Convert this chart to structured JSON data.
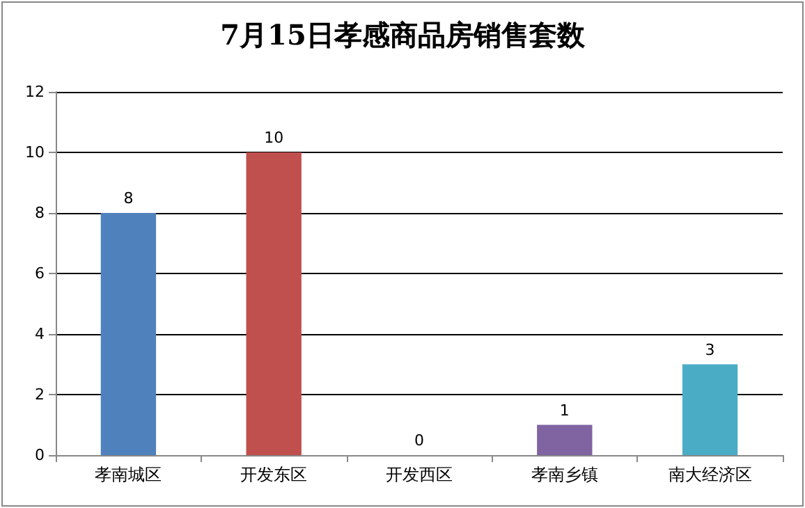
{
  "chart_data": {
    "type": "bar",
    "title": "7月15日孝感商品房销售套数",
    "categories": [
      "孝南城区",
      "开发东区",
      "开发西区",
      "孝南乡镇",
      "南大经济区"
    ],
    "values": [
      8,
      10,
      0,
      1,
      3
    ],
    "colors": [
      "#4f81bd",
      "#c0504d",
      "#9bbb59",
      "#8064a2",
      "#4bacc6"
    ],
    "ylim": [
      0,
      12
    ],
    "yticks": [
      0,
      2,
      4,
      6,
      8,
      10,
      12
    ],
    "grid": "y",
    "data_labels": true
  }
}
